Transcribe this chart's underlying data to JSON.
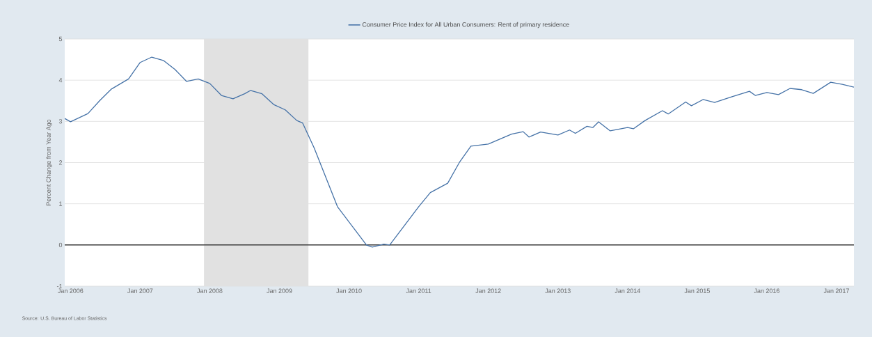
{
  "chart_data": {
    "type": "line",
    "ylabel": "Percent Change from Year Ago",
    "x": [
      "2005-12",
      "2006-01",
      "2006-04",
      "2006-06",
      "2006-08",
      "2006-11",
      "2007-01",
      "2007-03",
      "2007-05",
      "2007-07",
      "2007-09",
      "2007-11",
      "2008-01",
      "2008-03",
      "2008-05",
      "2008-07",
      "2008-08",
      "2008-10",
      "2008-12",
      "2009-02",
      "2009-04",
      "2009-05",
      "2009-07",
      "2009-11",
      "2010-02",
      "2010-04",
      "2010-05",
      "2010-07",
      "2010-08",
      "2010-10",
      "2011-01",
      "2011-03",
      "2011-06",
      "2011-08",
      "2011-10",
      "2012-01",
      "2012-05",
      "2012-07",
      "2012-08",
      "2012-10",
      "2013-01",
      "2013-03",
      "2013-04",
      "2013-06",
      "2013-07",
      "2013-08",
      "2013-10",
      "2014-01",
      "2014-02",
      "2014-04",
      "2014-07",
      "2014-08",
      "2014-11",
      "2014-12",
      "2015-02",
      "2015-04",
      "2015-07",
      "2015-10",
      "2015-11",
      "2016-01",
      "2016-03",
      "2016-05",
      "2016-07",
      "2016-09",
      "2016-12",
      "2017-02",
      "2017-04"
    ],
    "series": [
      {
        "name": "Consumer Price Index for All Urban Consumers: Rent of primary residence",
        "color": "#4572a7",
        "values": [
          3.07,
          2.99,
          3.19,
          3.5,
          3.78,
          4.03,
          4.43,
          4.56,
          4.48,
          4.26,
          3.97,
          4.03,
          3.92,
          3.63,
          3.55,
          3.67,
          3.75,
          3.67,
          3.41,
          3.28,
          3.02,
          2.96,
          2.35,
          0.93,
          0.37,
          0.0,
          -0.05,
          0.02,
          0.0,
          0.37,
          0.93,
          1.27,
          1.5,
          2.0,
          2.4,
          2.45,
          2.69,
          2.75,
          2.62,
          2.74,
          2.67,
          2.79,
          2.71,
          2.88,
          2.85,
          2.99,
          2.77,
          2.85,
          2.82,
          3.02,
          3.26,
          3.18,
          3.47,
          3.38,
          3.53,
          3.46,
          3.6,
          3.73,
          3.63,
          3.7,
          3.65,
          3.8,
          3.77,
          3.68,
          3.95,
          3.9,
          3.83
        ]
      }
    ],
    "xlim": [
      "2005-12",
      "2017-04"
    ],
    "xticks": [
      {
        "value": "2006-01",
        "label": "Jan 2006"
      },
      {
        "value": "2007-01",
        "label": "Jan 2007"
      },
      {
        "value": "2008-01",
        "label": "Jan 2008"
      },
      {
        "value": "2009-01",
        "label": "Jan 2009"
      },
      {
        "value": "2010-01",
        "label": "Jan 2010"
      },
      {
        "value": "2011-01",
        "label": "Jan 2011"
      },
      {
        "value": "2012-01",
        "label": "Jan 2012"
      },
      {
        "value": "2013-01",
        "label": "Jan 2013"
      },
      {
        "value": "2014-01",
        "label": "Jan 2014"
      },
      {
        "value": "2015-01",
        "label": "Jan 2015"
      },
      {
        "value": "2016-01",
        "label": "Jan 2016"
      },
      {
        "value": "2017-01",
        "label": "Jan 2017"
      }
    ],
    "ylim": [
      -1,
      5
    ],
    "yticks": [
      -1,
      0,
      1,
      2,
      3,
      4,
      5
    ],
    "ref_lines": [
      {
        "axis": "y",
        "value": 0,
        "color": "#3a3a3a"
      }
    ],
    "bands": [
      {
        "axis": "x",
        "from": "2007-12",
        "to": "2009-06",
        "color": "#e1e1e1"
      }
    ],
    "grid": "y",
    "legend": "top",
    "line_style": "solid",
    "marker": "none",
    "annotations": [
      "Source: U.S. Bureau of Labor Statistics"
    ]
  }
}
